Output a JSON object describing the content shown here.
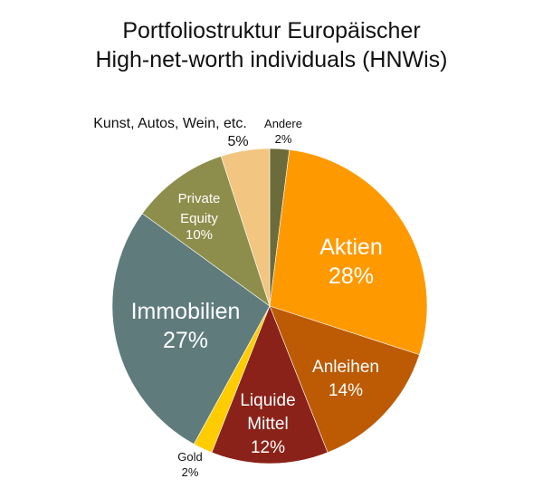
{
  "chart_data": {
    "type": "pie",
    "title_lines": [
      "Portfoliostruktur Europäischer",
      "High-net-worth individuals (HNWis)"
    ],
    "start": "12 o'clock, clockwise",
    "slices": [
      {
        "label": "Andere",
        "value": 2,
        "value_label": "2%",
        "color": "#6b6b3b"
      },
      {
        "label": "Aktien",
        "value": 28,
        "value_label": "28%",
        "color": "#ff9900"
      },
      {
        "label": "Anleihen",
        "value": 14,
        "value_label": "14%",
        "color": "#bd5b05"
      },
      {
        "label": "Liquide Mittel",
        "value": 12,
        "value_label": "12%",
        "color": "#8b2219"
      },
      {
        "label": "Gold",
        "value": 2,
        "value_label": "2%",
        "color": "#ffcc00"
      },
      {
        "label": "Immobilien",
        "value": 27,
        "value_label": "27%",
        "color": "#5f7b7b"
      },
      {
        "label": "Private Equity",
        "value": 10,
        "value_label": "10%",
        "color": "#8e8e4c"
      },
      {
        "label": "Kunst, Autos, Wein, etc.",
        "value": 5,
        "value_label": "5%",
        "color": "#f2c680"
      }
    ]
  }
}
